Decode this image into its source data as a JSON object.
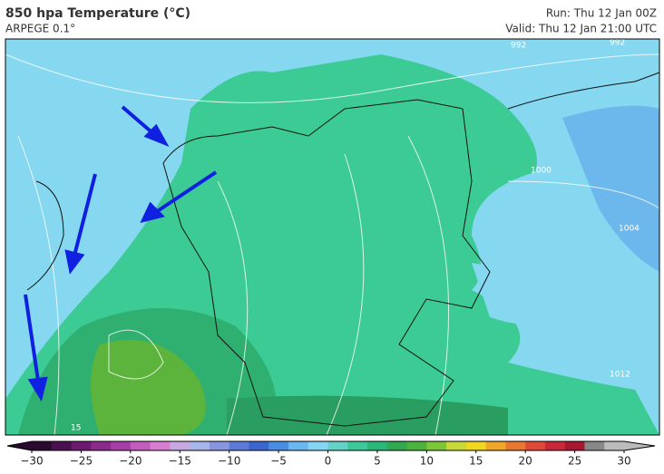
{
  "header": {
    "title": "850 hpa Temperature (°C)",
    "model": "ARPEGE 0.1°",
    "run": "Run: Thu 12 Jan 00Z",
    "valid": "Valid: Thu 12 Jan 21:00 UTC"
  },
  "isobar_labels": [
    "992",
    "992",
    "1000",
    "1004",
    "1012",
    "15"
  ],
  "colorbar": {
    "colors": [
      "#2a0a2e",
      "#4b1050",
      "#6c1a70",
      "#8a2a8a",
      "#a73ea6",
      "#c25cbe",
      "#d77ed3",
      "#c8a8e0",
      "#a8b4ec",
      "#8896e0",
      "#5d7ad6",
      "#3b66d0",
      "#4a8ee4",
      "#6ab6f0",
      "#86d4f4",
      "#64d2c8",
      "#3cc99a",
      "#2ab878",
      "#32a850",
      "#4cb43c",
      "#7cc63a",
      "#c8d83a",
      "#f0d820",
      "#f0a828",
      "#e87830",
      "#e04838",
      "#c82838",
      "#a81830",
      "#888888",
      "#bbbbbb"
    ],
    "ticks": [
      {
        "value": -30,
        "label": "−30"
      },
      {
        "value": -25,
        "label": "−25"
      },
      {
        "value": -20,
        "label": "−20"
      },
      {
        "value": -15,
        "label": "−15"
      },
      {
        "value": -10,
        "label": "−10"
      },
      {
        "value": -5,
        "label": "−5"
      },
      0,
      5,
      10,
      15,
      20,
      25,
      30
    ]
  }
}
